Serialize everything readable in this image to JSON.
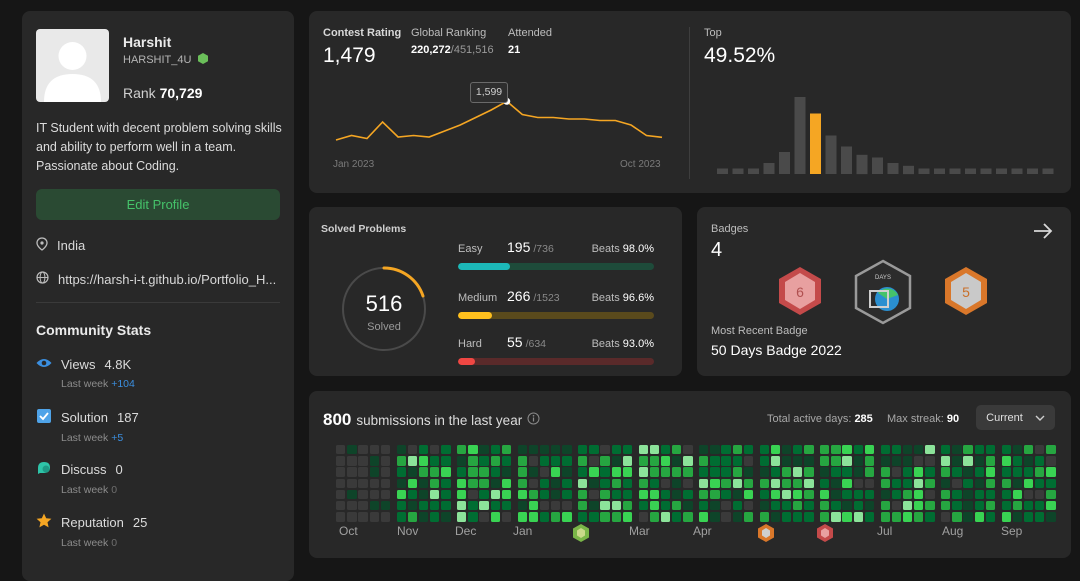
{
  "profile": {
    "name": "Harshit",
    "username": "HARSHIT_4U",
    "rank_label": "Rank",
    "rank_value": "70,729",
    "bio": "IT Student with decent problem solving skills and ability to perform well in a team. Passionate about Coding.",
    "edit_button": "Edit Profile",
    "location": "India",
    "website": "https://harsh-i-t.github.io/Portfolio_H..."
  },
  "community": {
    "title": "Community Stats",
    "items": [
      {
        "label": "Views",
        "value": "4.8K",
        "sub_prefix": "Last week",
        "delta": "+104",
        "icon": "eye-icon",
        "color": "#3b8fe0"
      },
      {
        "label": "Solution",
        "value": "187",
        "sub_prefix": "Last week",
        "delta": "+5",
        "icon": "check-square-icon",
        "color": "#4fa3e8"
      },
      {
        "label": "Discuss",
        "value": "0",
        "sub_prefix": "Last week",
        "delta": "0",
        "icon": "chat-icon",
        "color": "#2ec4a8"
      },
      {
        "label": "Reputation",
        "value": "25",
        "sub_prefix": "Last week",
        "delta": "0",
        "icon": "star-icon",
        "color": "#f5a623"
      }
    ]
  },
  "contest": {
    "rating_label": "Contest Rating",
    "rating_value": "1,479",
    "global_label": "Global Ranking",
    "global_rank": "220,272",
    "global_total": "/451,516",
    "attended_label": "Attended",
    "attended_value": "21",
    "top_label": "Top",
    "top_value": "49.52%",
    "tooltip": "1,599",
    "x_start": "Jan 2023",
    "x_end": "Oct 2023"
  },
  "chart_data": [
    {
      "type": "line",
      "title": "Contest Rating",
      "x": [
        "Jan 2023",
        "",
        "",
        "",
        "",
        "",
        "",
        "",
        "",
        "",
        "",
        "",
        "",
        "",
        "",
        "",
        "",
        "",
        "",
        "",
        "",
        "Oct 2023"
      ],
      "series": [
        {
          "values": [
            1470,
            1485,
            1475,
            1530,
            1480,
            1485,
            1480,
            1500,
            1520,
            1545,
            1570,
            1599,
            1555,
            1545,
            1545,
            1540,
            1540,
            1535,
            1535,
            1520,
            1485,
            1479
          ]
        }
      ],
      "highlight": {
        "value": 1599,
        "label": "1,599"
      },
      "ylim": [
        1400,
        1700
      ]
    },
    {
      "type": "bar",
      "title": "Top",
      "values": [
        1,
        1,
        1,
        2,
        4,
        14,
        11,
        7,
        5,
        3.5,
        3,
        2,
        1.5,
        1,
        1,
        1,
        1,
        1,
        1,
        1,
        1,
        1
      ],
      "highlight_index": 6,
      "highlight_color": "#f5a623"
    }
  ],
  "solved": {
    "title": "Solved Problems",
    "total": "516",
    "total_label": "Solved",
    "rows": [
      {
        "name": "Easy",
        "count": "195",
        "total": "/736",
        "beats_label": "Beats",
        "beats": "98.0%",
        "fraction": 0.265,
        "color": "#1cb8b8",
        "track": "#1e4b3a"
      },
      {
        "name": "Medium",
        "count": "266",
        "total": "/1523",
        "beats_label": "Beats",
        "beats": "96.6%",
        "fraction": 0.175,
        "color": "#ffc01e",
        "track": "#5a4a1c"
      },
      {
        "name": "Hard",
        "count": "55",
        "total": "/634",
        "beats_label": "Beats",
        "beats": "93.0%",
        "fraction": 0.087,
        "color": "#ef4743",
        "track": "#5a2a2a"
      }
    ]
  },
  "badges": {
    "title": "Badges",
    "count": "4",
    "recent_label": "Most Recent Badge",
    "recent_name": "50 Days Badge 2022",
    "items": [
      {
        "icon": "badge-6-icon",
        "text": "6",
        "color": "#e58080"
      },
      {
        "icon": "badge-50-days-icon",
        "text": "DAYS",
        "color": "#5aa6d6"
      },
      {
        "icon": "badge-5-icon",
        "text": "5",
        "color": "#e8935a"
      }
    ]
  },
  "submissions": {
    "count": "800",
    "label": "submissions in the last year",
    "active_label": "Total active days:",
    "active_value": "285",
    "streak_label": "Max streak:",
    "streak_value": "90",
    "dropdown": "Current",
    "months": [
      "Oct",
      "Nov",
      "Dec",
      "Jan",
      "Mar",
      "Apr",
      "Jul",
      "Aug",
      "Sep"
    ],
    "colors": [
      "#3a3a3a",
      "#0e4429",
      "#006d32",
      "#26a641",
      "#39d353",
      "#8ce39a"
    ]
  }
}
